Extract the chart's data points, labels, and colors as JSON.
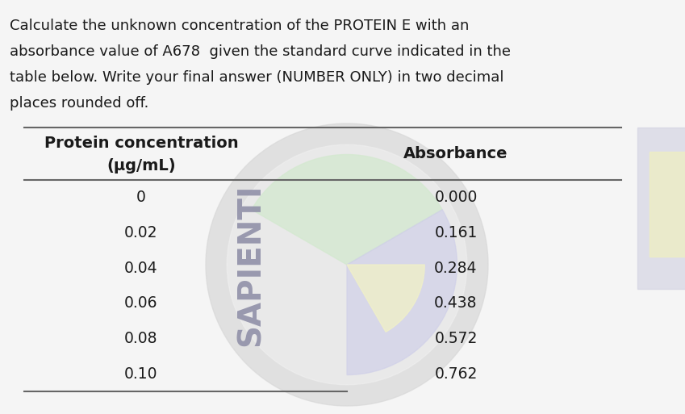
{
  "question_text_lines": [
    "Calculate the unknown concentration of the PROTEIN E with an",
    "absorbance value of A678  given the standard curve indicated in the",
    "table below. Write your final answer (NUMBER ONLY) in two decimal",
    "places rounded off."
  ],
  "col1_header_line1": "Protein concentration",
  "col1_header_line2": "(μg/mL)",
  "col2_header": "Absorbance",
  "concentrations": [
    "0",
    "0.02",
    "0.04",
    "0.06",
    "0.08",
    "0.10"
  ],
  "absorbances": [
    "0.000",
    "0.161",
    "0.284",
    "0.438",
    "0.572",
    "0.762"
  ],
  "bg_color": "#f5f5f5",
  "text_color": "#1a1a1a",
  "table_line_color": "#666666",
  "watermark_circle_color": "#e8e8e8",
  "watermark_green_color": "#d4e8d0",
  "watermark_purple_color": "#d0d0e8",
  "watermark_yellow_color": "#f0f0c8",
  "watermark_text": "SAPIENTI",
  "watermark_text_color": "#9090a8",
  "question_fontsize": 13.0,
  "header_fontsize": 14.0,
  "cell_fontsize": 13.5,
  "fig_width": 8.49,
  "fig_height": 5.13
}
